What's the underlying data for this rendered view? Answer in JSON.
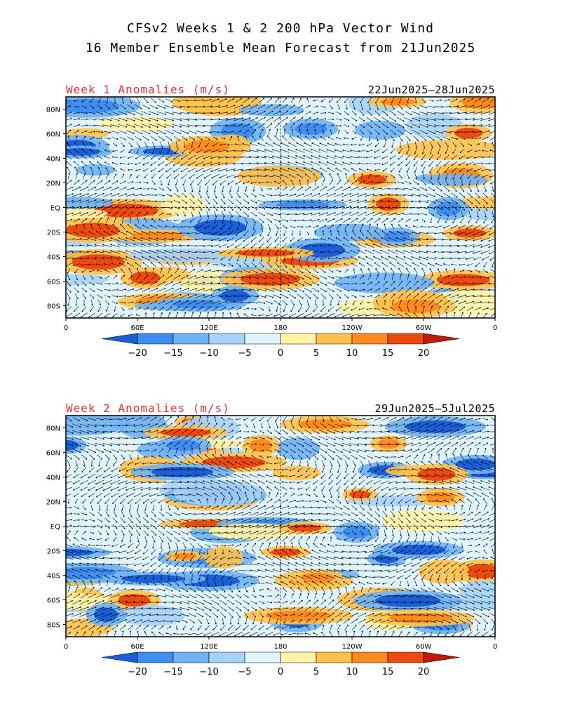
{
  "title": {
    "line1": "CFSv2 Weeks 1 & 2 200 hPa Vector Wind",
    "line2": "16 Member Ensemble Mean Forecast from 21Jun2025"
  },
  "panels": [
    {
      "label": "Week 1 Anomalies (m/s)",
      "dates": "22Jun2025—28Jun2025"
    },
    {
      "label": "Week 2 Anomalies (m/s)",
      "dates": "29Jun2025—5Jul2025"
    }
  ],
  "axes": {
    "lat_labels": [
      "80N",
      "60N",
      "40N",
      "20N",
      "EQ",
      "20S",
      "40S",
      "60S",
      "80S"
    ],
    "lon_labels": [
      "0",
      "60E",
      "120E",
      "180",
      "120W",
      "60W",
      "0"
    ]
  },
  "colorbar": {
    "labels": [
      "−20",
      "−15",
      "−10",
      "−5",
      "0",
      "5",
      "10",
      "15",
      "20"
    ],
    "colors": [
      "#1a5fd8",
      "#3d8ef0",
      "#6fb2f6",
      "#a6d3fa",
      "#dff4fc",
      "#fff3a8",
      "#ffc24d",
      "#ff8a1e",
      "#ee4a10",
      "#c21a0a"
    ]
  },
  "colors": {
    "title_red": "#e03030",
    "background": "#ffffff"
  }
}
